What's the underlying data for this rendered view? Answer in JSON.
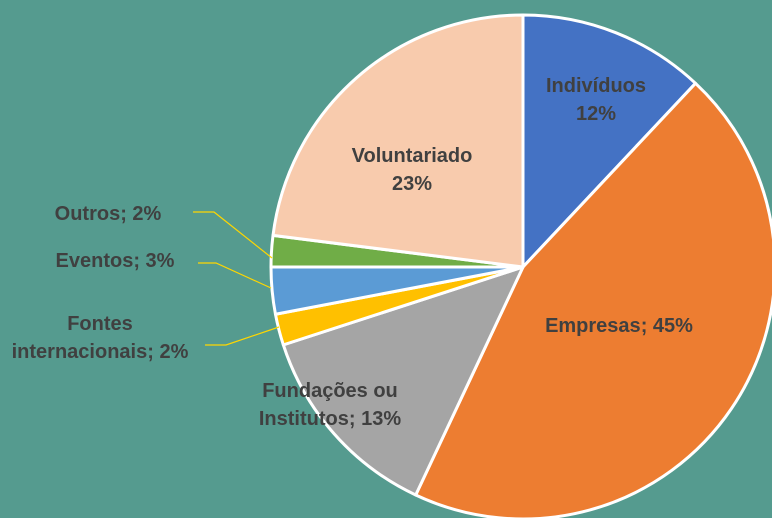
{
  "chart_data": {
    "type": "pie",
    "categories": [
      "Indivíduos",
      "Empresas",
      "Fundações ou Institutos",
      "Fontes internacionais",
      "Eventos",
      "Outros",
      "Voluntariado"
    ],
    "values": [
      12,
      45,
      13,
      2,
      3,
      2,
      23
    ],
    "value_labels": [
      "12%",
      "; 45%",
      "; 13%",
      "; 2%",
      "; 3%",
      "; 2%",
      "23%"
    ],
    "colors": [
      "#4472c4",
      "#ed7d31",
      "#a5a5a5",
      "#ffc000",
      "#5b9bd5",
      "#70ad47",
      "#f8cbad"
    ]
  }
}
